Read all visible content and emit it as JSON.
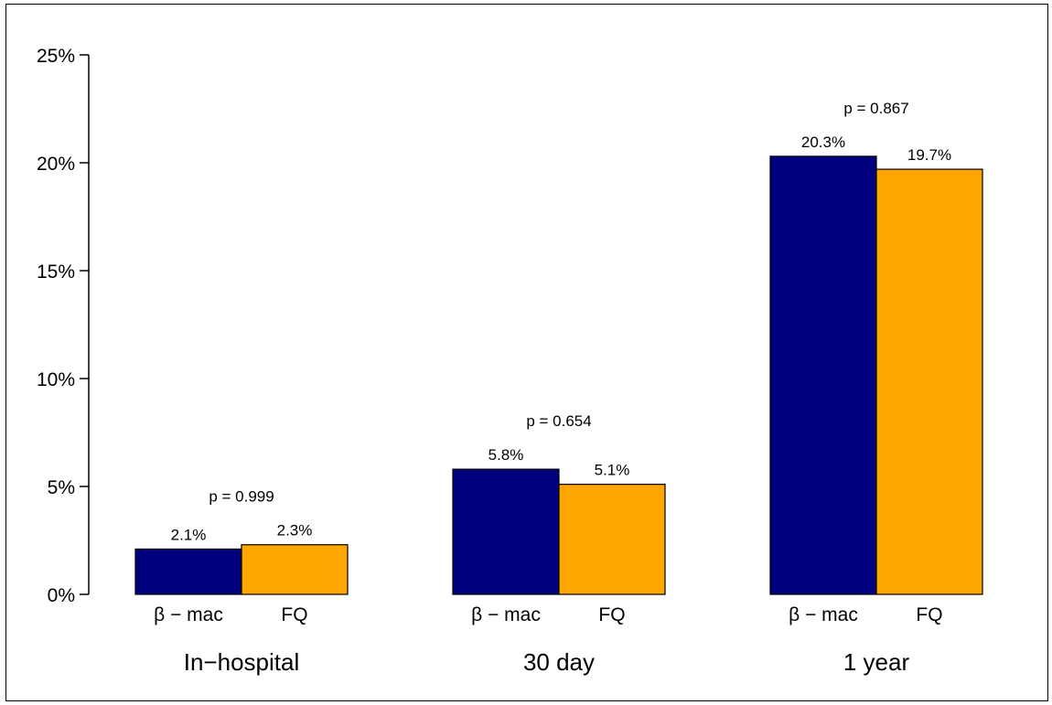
{
  "chart_data": {
    "type": "bar",
    "title": "",
    "xlabel": "",
    "ylabel": "",
    "ylim": [
      0,
      25
    ],
    "yticks": [
      0,
      5,
      10,
      15,
      20,
      25
    ],
    "ytick_labels": [
      "0%",
      "5%",
      "10%",
      "15%",
      "20%",
      "25%"
    ],
    "groups": [
      {
        "label": "In−hospital",
        "p_label": "p = 0.999",
        "bars": [
          {
            "label": "β − mac",
            "value": 2.1,
            "value_label": "2.1%"
          },
          {
            "label": "FQ",
            "value": 2.3,
            "value_label": "2.3%"
          }
        ]
      },
      {
        "label": "30 day",
        "p_label": "p = 0.654",
        "bars": [
          {
            "label": "β − mac",
            "value": 5.8,
            "value_label": "5.8%"
          },
          {
            "label": "FQ",
            "value": 5.1,
            "value_label": "5.1%"
          }
        ]
      },
      {
        "label": "1 year",
        "p_label": "p = 0.867",
        "bars": [
          {
            "label": "β − mac",
            "value": 20.3,
            "value_label": "20.3%"
          },
          {
            "label": "FQ",
            "value": 19.7,
            "value_label": "19.7%"
          }
        ]
      }
    ],
    "colors": [
      "#00007F",
      "#FFA500"
    ],
    "grid": false,
    "legend": "none"
  }
}
